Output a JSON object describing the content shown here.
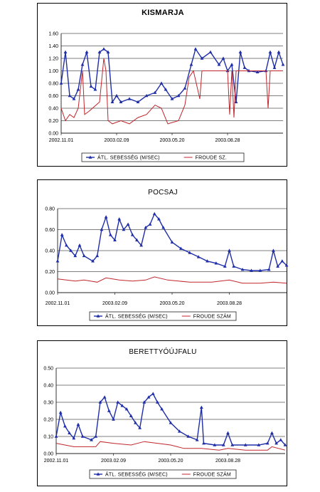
{
  "chart_data": [
    {
      "type": "line",
      "title": "KISMARJA",
      "xlabel": "",
      "ylabel": "",
      "x_ticks": [
        "2002.11.01",
        "2003.02.09",
        "2003.05.20",
        "2003.08.28"
      ],
      "y_ticks": [
        "0.00",
        "0.20",
        "0.40",
        "0.60",
        "0.80",
        "1.00",
        "1.20",
        "1.40",
        "1.60"
      ],
      "ylim": [
        0,
        1.6
      ],
      "grid": true,
      "legend_position": "bottom",
      "series": [
        {
          "name": "ÁTL. SEBESSÉG (M/SEC)",
          "color": "#1f2ea8",
          "marker": "triangle",
          "points": [
            [
              0,
              0.8
            ],
            [
              2,
              1.3
            ],
            [
              4,
              0.6
            ],
            [
              6,
              0.55
            ],
            [
              8,
              0.7
            ],
            [
              10,
              1.1
            ],
            [
              12,
              1.3
            ],
            [
              14,
              0.75
            ],
            [
              16,
              0.7
            ],
            [
              18,
              1.3
            ],
            [
              20,
              1.35
            ],
            [
              22,
              1.3
            ],
            [
              24,
              0.5
            ],
            [
              26,
              0.6
            ],
            [
              28,
              0.5
            ],
            [
              32,
              0.55
            ],
            [
              36,
              0.5
            ],
            [
              40,
              0.6
            ],
            [
              44,
              0.65
            ],
            [
              47,
              0.8
            ],
            [
              49,
              0.7
            ],
            [
              52,
              0.55
            ],
            [
              55,
              0.6
            ],
            [
              58,
              0.72
            ],
            [
              61,
              1.1
            ],
            [
              63,
              1.35
            ],
            [
              66,
              1.2
            ],
            [
              70,
              1.3
            ],
            [
              74,
              1.1
            ],
            [
              76,
              1.2
            ],
            [
              78,
              1.0
            ],
            [
              80,
              1.1
            ],
            [
              82,
              0.5
            ],
            [
              84,
              1.3
            ],
            [
              86,
              1.05
            ],
            [
              88,
              1.0
            ],
            [
              92,
              0.98
            ],
            [
              96,
              1.0
            ],
            [
              98,
              1.3
            ],
            [
              100,
              1.05
            ],
            [
              102,
              1.3
            ],
            [
              104,
              1.1
            ]
          ]
        },
        {
          "name": "FROUDE SZ.",
          "color": "#c0262d",
          "marker": "none",
          "points": [
            [
              0,
              0.4
            ],
            [
              2,
              0.2
            ],
            [
              4,
              0.3
            ],
            [
              6,
              0.25
            ],
            [
              8,
              0.4
            ],
            [
              10,
              1.0
            ],
            [
              11,
              0.3
            ],
            [
              13,
              0.35
            ],
            [
              18,
              0.5
            ],
            [
              20,
              1.2
            ],
            [
              21,
              1.0
            ],
            [
              22,
              0.2
            ],
            [
              24,
              0.15
            ],
            [
              28,
              0.2
            ],
            [
              32,
              0.15
            ],
            [
              36,
              0.25
            ],
            [
              40,
              0.3
            ],
            [
              44,
              0.45
            ],
            [
              47,
              0.4
            ],
            [
              50,
              0.15
            ],
            [
              55,
              0.2
            ],
            [
              58,
              0.45
            ],
            [
              60,
              0.9
            ],
            [
              62,
              1.0
            ],
            [
              65,
              0.55
            ],
            [
              66,
              1.0
            ],
            [
              70,
              1.0
            ],
            [
              78,
              1.0
            ],
            [
              79,
              0.3
            ],
            [
              80,
              1.0
            ],
            [
              81,
              0.25
            ],
            [
              82,
              1.0
            ],
            [
              90,
              1.0
            ],
            [
              96,
              1.0
            ],
            [
              97,
              0.4
            ],
            [
              98,
              1.0
            ],
            [
              104,
              1.0
            ]
          ]
        }
      ]
    },
    {
      "type": "line",
      "title": "POCSAJ",
      "xlabel": "",
      "ylabel": "",
      "x_ticks": [
        "2002.11.01",
        "2003.02.09",
        "2003.05.20",
        "2003.08.28"
      ],
      "y_ticks": [
        "0.00",
        "0.20",
        "0.40",
        "0.60",
        "0.80"
      ],
      "ylim": [
        0,
        0.8
      ],
      "grid": true,
      "legend_position": "bottom",
      "series": [
        {
          "name": "ÁTL. SEBESSÉG (M/SEC)",
          "color": "#1f2ea8",
          "marker": "triangle",
          "points": [
            [
              0,
              0.3
            ],
            [
              2,
              0.55
            ],
            [
              4,
              0.45
            ],
            [
              6,
              0.4
            ],
            [
              8,
              0.35
            ],
            [
              10,
              0.45
            ],
            [
              12,
              0.35
            ],
            [
              16,
              0.3
            ],
            [
              18,
              0.35
            ],
            [
              20,
              0.6
            ],
            [
              22,
              0.72
            ],
            [
              24,
              0.55
            ],
            [
              26,
              0.5
            ],
            [
              28,
              0.7
            ],
            [
              30,
              0.6
            ],
            [
              32,
              0.65
            ],
            [
              34,
              0.55
            ],
            [
              36,
              0.5
            ],
            [
              38,
              0.45
            ],
            [
              40,
              0.62
            ],
            [
              42,
              0.65
            ],
            [
              44,
              0.75
            ],
            [
              46,
              0.7
            ],
            [
              48,
              0.62
            ],
            [
              52,
              0.48
            ],
            [
              56,
              0.42
            ],
            [
              60,
              0.38
            ],
            [
              64,
              0.34
            ],
            [
              68,
              0.3
            ],
            [
              72,
              0.28
            ],
            [
              76,
              0.25
            ],
            [
              78,
              0.4
            ],
            [
              80,
              0.25
            ],
            [
              84,
              0.22
            ],
            [
              88,
              0.21
            ],
            [
              92,
              0.21
            ],
            [
              96,
              0.22
            ],
            [
              98,
              0.4
            ],
            [
              100,
              0.25
            ],
            [
              102,
              0.3
            ],
            [
              104,
              0.26
            ]
          ]
        },
        {
          "name": "FROUDE SZÁM",
          "color": "#c0262d",
          "marker": "none",
          "points": [
            [
              0,
              0.13
            ],
            [
              4,
              0.12
            ],
            [
              8,
              0.11
            ],
            [
              12,
              0.12
            ],
            [
              18,
              0.1
            ],
            [
              22,
              0.14
            ],
            [
              28,
              0.12
            ],
            [
              34,
              0.11
            ],
            [
              40,
              0.12
            ],
            [
              44,
              0.15
            ],
            [
              50,
              0.12
            ],
            [
              60,
              0.1
            ],
            [
              70,
              0.1
            ],
            [
              78,
              0.12
            ],
            [
              84,
              0.09
            ],
            [
              92,
              0.09
            ],
            [
              98,
              0.1
            ],
            [
              104,
              0.09
            ]
          ]
        }
      ]
    },
    {
      "type": "line",
      "title": "BERETTYÓÚJFALU",
      "xlabel": "",
      "ylabel": "",
      "x_ticks": [
        "2002.11.01",
        "2003.02.09",
        "2003.05.20",
        "2003.08.28"
      ],
      "y_ticks": [
        "0.00",
        "0.10",
        "0.20",
        "0.30",
        "0.40",
        "0.50"
      ],
      "ylim": [
        0,
        0.5
      ],
      "grid": true,
      "legend_position": "bottom",
      "series": [
        {
          "name": "ÁTL. SEBESSÉG (M/SEC)",
          "color": "#1f2ea8",
          "marker": "triangle",
          "points": [
            [
              0,
              0.1
            ],
            [
              2,
              0.24
            ],
            [
              4,
              0.16
            ],
            [
              6,
              0.12
            ],
            [
              8,
              0.09
            ],
            [
              10,
              0.17
            ],
            [
              12,
              0.1
            ],
            [
              16,
              0.08
            ],
            [
              18,
              0.1
            ],
            [
              20,
              0.3
            ],
            [
              22,
              0.33
            ],
            [
              24,
              0.25
            ],
            [
              26,
              0.2
            ],
            [
              28,
              0.3
            ],
            [
              30,
              0.28
            ],
            [
              32,
              0.26
            ],
            [
              34,
              0.22
            ],
            [
              36,
              0.18
            ],
            [
              38,
              0.15
            ],
            [
              40,
              0.3
            ],
            [
              42,
              0.33
            ],
            [
              44,
              0.35
            ],
            [
              46,
              0.3
            ],
            [
              48,
              0.26
            ],
            [
              52,
              0.18
            ],
            [
              56,
              0.13
            ],
            [
              60,
              0.1
            ],
            [
              64,
              0.08
            ],
            [
              66,
              0.27
            ],
            [
              67,
              0.06
            ],
            [
              72,
              0.05
            ],
            [
              76,
              0.05
            ],
            [
              78,
              0.12
            ],
            [
              80,
              0.05
            ],
            [
              86,
              0.05
            ],
            [
              92,
              0.05
            ],
            [
              96,
              0.06
            ],
            [
              98,
              0.12
            ],
            [
              100,
              0.06
            ],
            [
              102,
              0.08
            ],
            [
              104,
              0.05
            ]
          ]
        },
        {
          "name": "FROUDE SZÁM",
          "color": "#c0262d",
          "marker": "none",
          "points": [
            [
              0,
              0.06
            ],
            [
              4,
              0.05
            ],
            [
              8,
              0.04
            ],
            [
              14,
              0.04
            ],
            [
              18,
              0.04
            ],
            [
              20,
              0.07
            ],
            [
              26,
              0.06
            ],
            [
              34,
              0.05
            ],
            [
              40,
              0.07
            ],
            [
              46,
              0.06
            ],
            [
              52,
              0.05
            ],
            [
              58,
              0.03
            ],
            [
              66,
              0.03
            ],
            [
              74,
              0.02
            ],
            [
              78,
              0.03
            ],
            [
              86,
              0.02
            ],
            [
              96,
              0.02
            ],
            [
              98,
              0.04
            ],
            [
              104,
              0.02
            ]
          ]
        }
      ]
    }
  ]
}
